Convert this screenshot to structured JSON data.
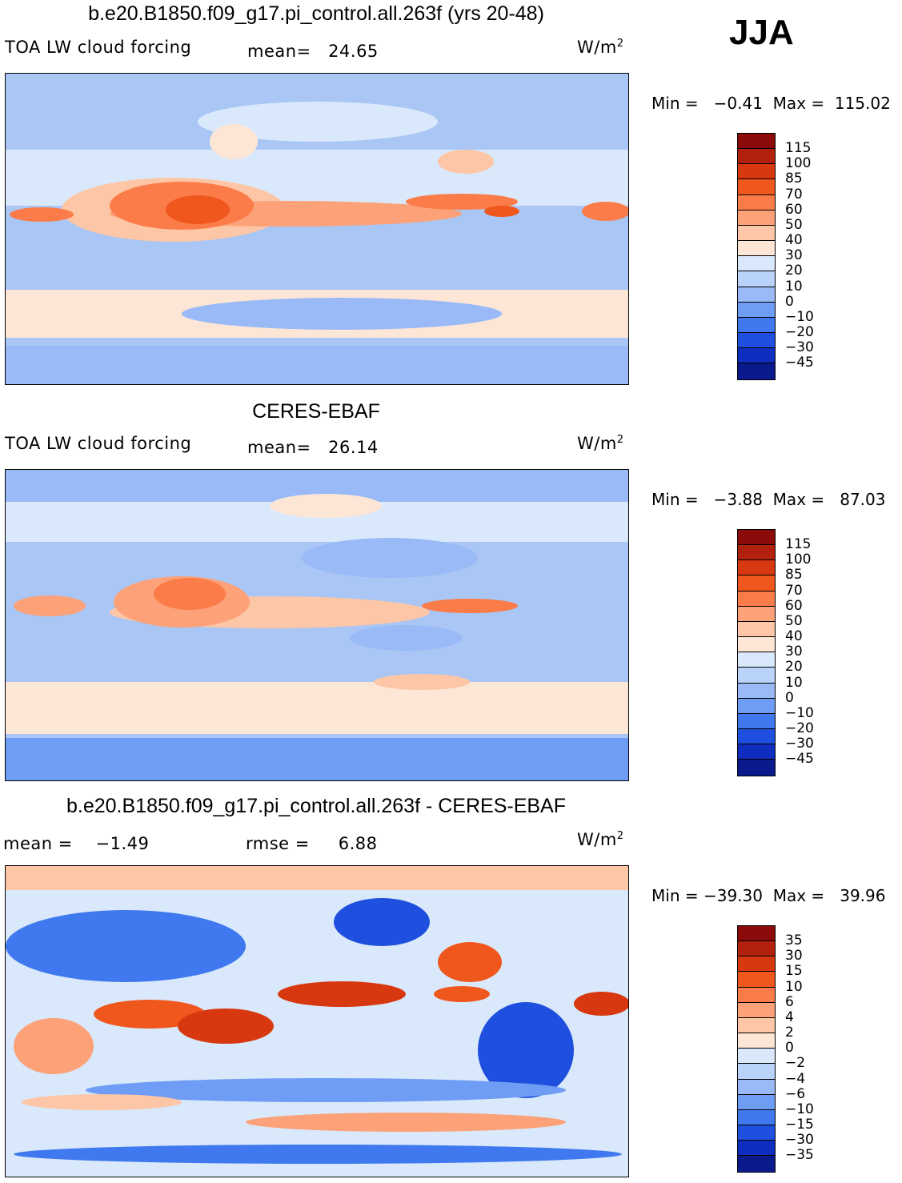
{
  "season": "JJA",
  "panels": [
    {
      "title": "b.e20.B1850.f09_g17.pi_control.all.263f (yrs 20-48)",
      "left_label": "TOA LW cloud forcing",
      "stat_text": "mean=   24.65",
      "units": "W/m",
      "units_sup": "2",
      "minmax": "Min =   −0.41  Max =  115.02",
      "levels": [
        "115",
        "100",
        "85",
        "70",
        "60",
        "50",
        "40",
        "30",
        "20",
        "10",
        "0",
        "−10",
        "−20",
        "−30",
        "−45"
      ],
      "colors": [
        "#8b0a0a",
        "#b2210e",
        "#d8380f",
        "#f0571d",
        "#fb7c48",
        "#fca178",
        "#fdc6a6",
        "#fde6d6",
        "#d9e9fb",
        "#b9d3fb",
        "#99baf7",
        "#6f9cf4",
        "#3f78ef",
        "#1f4fde",
        "#0f2dbf",
        "#0a1a8c"
      ]
    },
    {
      "title": "CERES-EBAF",
      "left_label": "TOA LW cloud forcing",
      "stat_text": "mean=   26.14",
      "units": "W/m",
      "units_sup": "2",
      "minmax": "Min =   −3.88  Max =   87.03",
      "levels": [
        "115",
        "100",
        "85",
        "70",
        "60",
        "50",
        "40",
        "30",
        "20",
        "10",
        "0",
        "−10",
        "−20",
        "−30",
        "−45"
      ],
      "colors": [
        "#8b0a0a",
        "#b2210e",
        "#d8380f",
        "#f0571d",
        "#fb7c48",
        "#fca178",
        "#fdc6a6",
        "#fde6d6",
        "#d9e9fb",
        "#b9d3fb",
        "#99baf7",
        "#6f9cf4",
        "#3f78ef",
        "#1f4fde",
        "#0f2dbf",
        "#0a1a8c"
      ]
    },
    {
      "title": "b.e20.B1850.f09_g17.pi_control.all.263f - CERES-EBAF",
      "left_label": "mean =    −1.49",
      "stat_text": "rmse =     6.88",
      "units": "W/m",
      "units_sup": "2",
      "minmax": "Min = −39.30  Max =   39.96",
      "levels": [
        "35",
        "30",
        "15",
        "10",
        "6",
        "4",
        "2",
        "0",
        "−2",
        "−4",
        "−6",
        "−10",
        "−15",
        "−30",
        "−35"
      ],
      "colors": [
        "#8b0a0a",
        "#b2210e",
        "#d8380f",
        "#f0571d",
        "#fb7c48",
        "#fca178",
        "#fdc6a6",
        "#fde6d6",
        "#d9e9fb",
        "#b9d3fb",
        "#99baf7",
        "#6f9cf4",
        "#3f78ef",
        "#1f4fde",
        "#0f2dbf",
        "#0a1a8c"
      ]
    }
  ]
}
